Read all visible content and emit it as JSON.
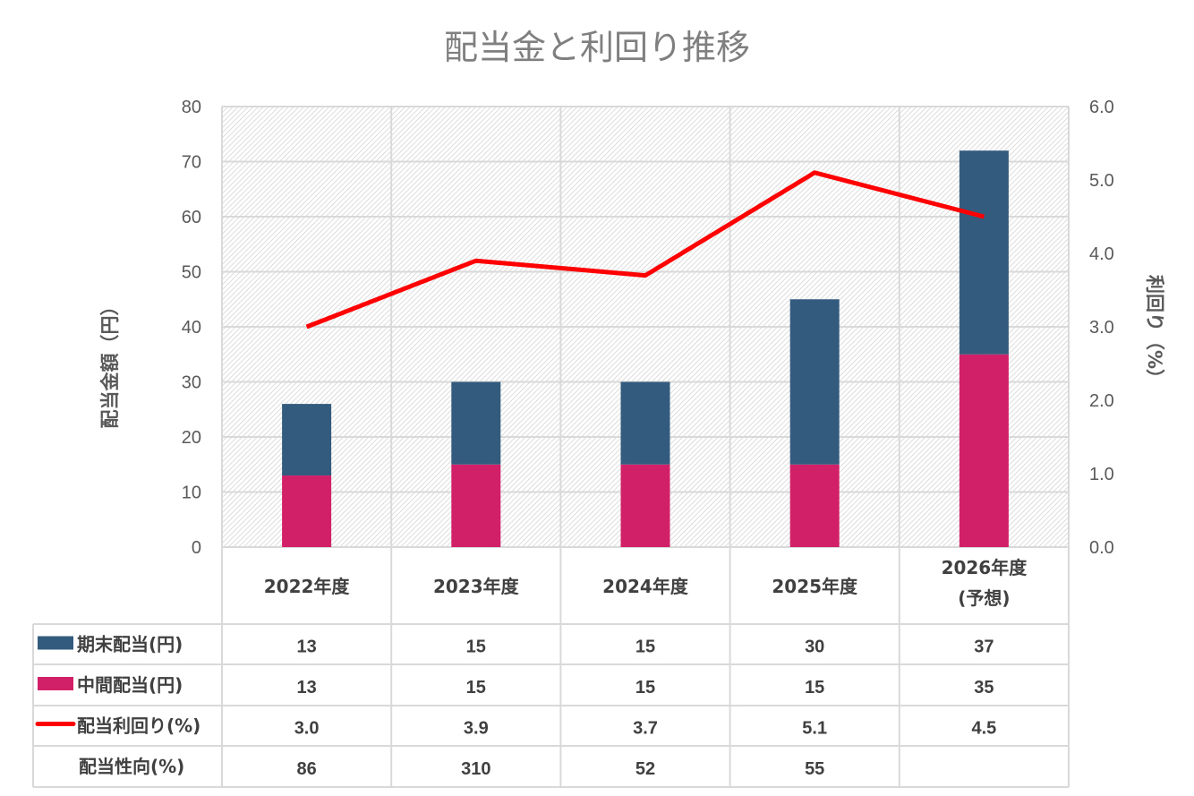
{
  "chart_data": {
    "type": "bar",
    "title": "配当金と利回り推移",
    "categories": [
      [
        "2022年度"
      ],
      [
        "2023年度"
      ],
      [
        "2024年度"
      ],
      [
        "2025年度"
      ],
      [
        "2026年度",
        "(予想)"
      ]
    ],
    "ylabel": "配当金額（円）",
    "y2label": "利回り（%）",
    "ylim": [
      0,
      80
    ],
    "y2lim": [
      0,
      6
    ],
    "yticks": [
      "0",
      "10",
      "20",
      "30",
      "40",
      "50",
      "60",
      "70",
      "80"
    ],
    "y2ticks": [
      "0.0",
      "1.0",
      "2.0",
      "3.0",
      "4.0",
      "5.0",
      "6.0"
    ],
    "grid": true,
    "stacked": true,
    "series": [
      {
        "name": "中間配当(円)",
        "kind": "bar",
        "color": "#d11f68",
        "values": [
          13,
          15,
          15,
          15,
          35
        ],
        "labels": [
          "13",
          "15",
          "15",
          "15",
          "35"
        ]
      },
      {
        "name": "期末配当(円)",
        "kind": "bar",
        "color": "#335b7d",
        "values": [
          13,
          15,
          15,
          30,
          37
        ],
        "labels": [
          "13",
          "15",
          "15",
          "30",
          "37"
        ]
      },
      {
        "name": "配当利回り(%)",
        "kind": "line",
        "axis": "right",
        "color": "#ff0000",
        "values": [
          3.0,
          3.9,
          3.7,
          5.1,
          4.5
        ],
        "labels": [
          "3.0",
          "3.9",
          "3.7",
          "5.1",
          "4.5"
        ]
      },
      {
        "name": "配当性向(%)",
        "kind": "table-only",
        "labels": [
          "86",
          "310",
          "52",
          "55",
          ""
        ]
      }
    ],
    "table_order": [
      1,
      0,
      2,
      3
    ]
  }
}
